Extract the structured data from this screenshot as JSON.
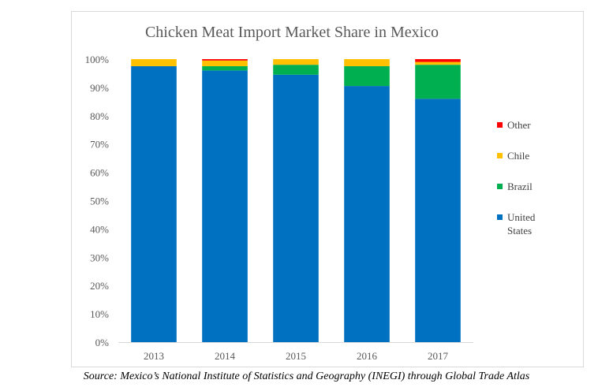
{
  "chart_data": {
    "type": "bar",
    "stacked": true,
    "title": "Chicken Meat Import Market Share in Mexico",
    "categories": [
      "2013",
      "2014",
      "2015",
      "2016",
      "2017"
    ],
    "series": [
      {
        "name": "United States",
        "color": "#0070c0",
        "values": [
          97.5,
          96,
          94.5,
          90.5,
          86
        ]
      },
      {
        "name": "Brazil",
        "color": "#00b050",
        "values": [
          0,
          1.5,
          3.5,
          7,
          12
        ]
      },
      {
        "name": "Chile",
        "color": "#ffc000",
        "values": [
          2.5,
          2,
          2,
          2.5,
          1
        ]
      },
      {
        "name": "Other",
        "color": "#ff0000",
        "values": [
          0,
          0.5,
          0,
          0,
          1
        ]
      }
    ],
    "ylim": [
      0,
      100
    ],
    "yticks": [
      "0%",
      "10%",
      "20%",
      "30%",
      "40%",
      "50%",
      "60%",
      "70%",
      "80%",
      "90%",
      "100%"
    ],
    "grid": false,
    "legend_position": "right",
    "legend_order": [
      "Other",
      "Chile",
      "Brazil",
      "United States"
    ],
    "legend_labels": {
      "Other": "Other",
      "Chile": "Chile",
      "Brazil": "Brazil",
      "United States": [
        "United",
        "States"
      ]
    }
  },
  "source_note": "Source: Mexico’s National Institute of Statistics and Geography (INEGI) through Global Trade Atlas"
}
